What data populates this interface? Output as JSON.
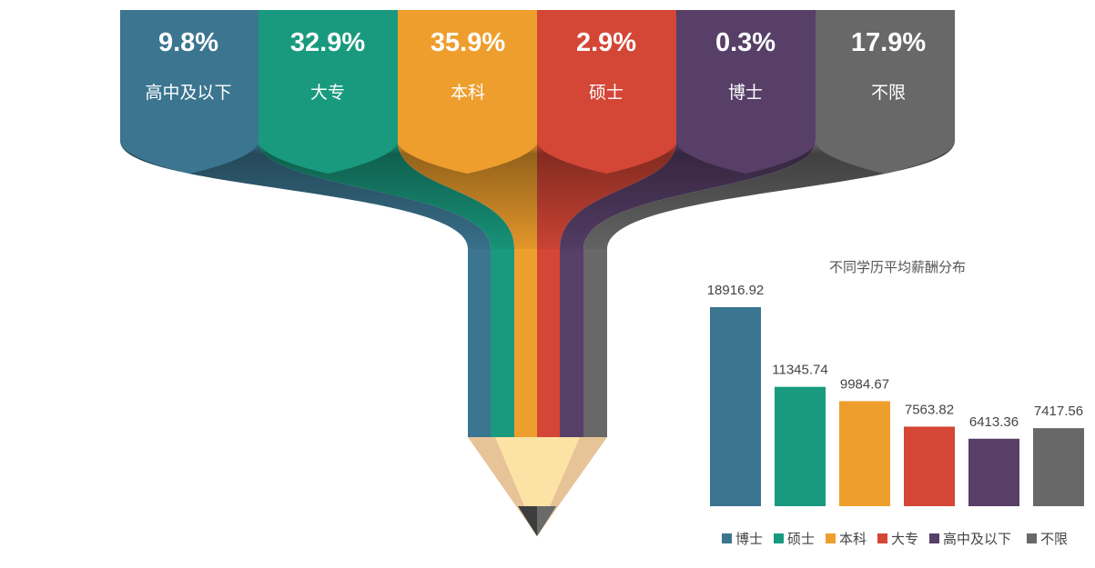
{
  "funnel": {
    "segments": [
      {
        "label": "高中及以下",
        "percent": "9.8%",
        "color": "#3b7590",
        "shade": "#2b5a70"
      },
      {
        "label": "大专",
        "percent": "32.9%",
        "color": "#199a7e",
        "shade": "#127461"
      },
      {
        "label": "本科",
        "percent": "35.9%",
        "color": "#ee9e2d",
        "shade": "#b8761c"
      },
      {
        "label": "硕士",
        "percent": "2.9%",
        "color": "#d44636",
        "shade": "#a53226"
      },
      {
        "label": "博士",
        "percent": "0.3%",
        "color": "#573f68",
        "shade": "#3f2d4c"
      },
      {
        "label": "不限",
        "percent": "17.9%",
        "color": "#686868",
        "shade": "#4d4d4d"
      }
    ],
    "pencil": {
      "wood_light": "#fde2a6",
      "wood_dark": "#e7c497",
      "lead": "#3d3d3d"
    }
  },
  "chart_data": {
    "type": "bar",
    "title": "不同学历平均薪酬分布",
    "categories": [
      "博士",
      "硕士",
      "本科",
      "大专",
      "高中及以下",
      "不限"
    ],
    "values": [
      18916.92,
      11345.74,
      9984.67,
      7563.82,
      6413.36,
      7417.56
    ],
    "value_labels": [
      "18916.92",
      "11345.74",
      "9984.67",
      "7563.82",
      "6413.36",
      "7417.56"
    ],
    "colors": [
      "#3b7590",
      "#199a7e",
      "#ee9e2d",
      "#d44636",
      "#573f68",
      "#686868"
    ],
    "xlabel": "",
    "ylabel": "",
    "legend_position": "bottom",
    "grid": false,
    "axes_visible": false
  }
}
